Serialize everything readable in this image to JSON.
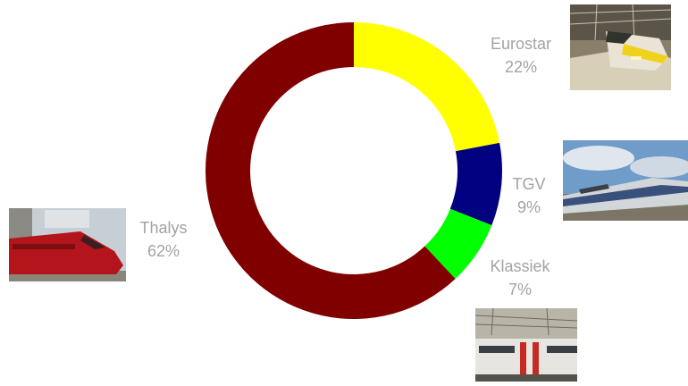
{
  "chart_data": {
    "type": "pie",
    "style": "donut",
    "slices": [
      {
        "label": "Eurostar",
        "percent_label": "22%",
        "value": 22,
        "color": "#ffff00"
      },
      {
        "label": "TGV",
        "percent_label": "9%",
        "value": 9,
        "color": "#000080"
      },
      {
        "label": "Klassiek",
        "percent_label": "7%",
        "value": 7,
        "color": "#00ff00"
      },
      {
        "label": "Thalys",
        "percent_label": "62%",
        "value": 62,
        "color": "#800000"
      }
    ],
    "title": "",
    "legend": "none"
  },
  "colors": {
    "label_text": "#a3a3a3",
    "background": "#ffffff"
  },
  "images": {
    "eurostar": "eurostar-train-photo",
    "tgv": "tgv-train-photo",
    "klassiek": "klassiek-train-photo",
    "thalys": "thalys-train-photo"
  }
}
